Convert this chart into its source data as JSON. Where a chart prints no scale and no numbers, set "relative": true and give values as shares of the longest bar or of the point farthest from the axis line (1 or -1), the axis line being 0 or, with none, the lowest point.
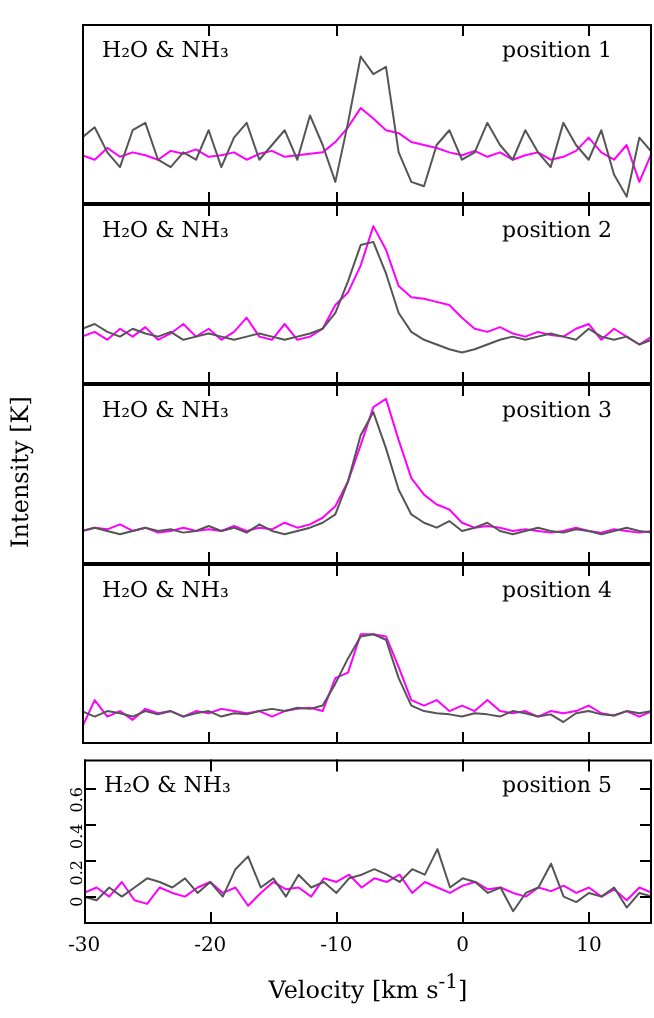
{
  "chart_data": [
    {
      "type": "line",
      "relative": true,
      "tick_labels": false,
      "xlim": [
        -30,
        15
      ],
      "xticks": [
        -30,
        -20,
        -10,
        0,
        10
      ],
      "annotations": [
        "H₂O & NH₃",
        "position 1"
      ],
      "x": [
        -30,
        -29,
        -28,
        -27,
        -26,
        -25,
        -24,
        -23,
        -22,
        -21,
        -20,
        -19,
        -18,
        -17,
        -16,
        -15,
        -14,
        -13,
        -12,
        -11,
        -10,
        -9,
        -8,
        -7,
        -6,
        -5,
        -4,
        -3,
        -2,
        -1,
        0,
        1,
        2,
        3,
        4,
        5,
        6,
        7,
        8,
        9,
        10,
        11,
        12,
        13,
        14,
        15
      ],
      "series": [
        {
          "color": "#555555",
          "values": [
            0.45,
            0.52,
            0.35,
            0.25,
            0.5,
            0.55,
            0.3,
            0.25,
            0.35,
            0.3,
            0.5,
            0.25,
            0.45,
            0.55,
            0.3,
            0.4,
            0.5,
            0.3,
            0.6,
            0.4,
            0.15,
            0.55,
            1.0,
            0.88,
            0.93,
            0.35,
            0.15,
            0.12,
            0.4,
            0.5,
            0.3,
            0.35,
            0.55,
            0.4,
            0.3,
            0.5,
            0.35,
            0.25,
            0.55,
            0.4,
            0.3,
            0.5,
            0.2,
            0.05,
            0.45,
            0.35
          ]
        },
        {
          "color": "#ff00ff",
          "values": [
            0.33,
            0.3,
            0.38,
            0.32,
            0.35,
            0.33,
            0.3,
            0.36,
            0.34,
            0.37,
            0.32,
            0.33,
            0.35,
            0.3,
            0.34,
            0.36,
            0.32,
            0.33,
            0.34,
            0.35,
            0.42,
            0.52,
            0.65,
            0.58,
            0.5,
            0.48,
            0.42,
            0.4,
            0.38,
            0.35,
            0.33,
            0.36,
            0.32,
            0.35,
            0.3,
            0.33,
            0.35,
            0.3,
            0.32,
            0.36,
            0.45,
            0.35,
            0.3,
            0.4,
            0.15,
            0.35
          ]
        }
      ]
    },
    {
      "type": "line",
      "relative": true,
      "tick_labels": false,
      "xlim": [
        -30,
        15
      ],
      "xticks": [
        -30,
        -20,
        -10,
        0,
        10
      ],
      "annotations": [
        "H₂O & NH₃",
        "position 2"
      ],
      "x": [
        -30,
        -29,
        -28,
        -27,
        -26,
        -25,
        -24,
        -23,
        -22,
        -21,
        -20,
        -19,
        -18,
        -17,
        -16,
        -15,
        -14,
        -13,
        -12,
        -11,
        -10,
        -9,
        -8,
        -7,
        -6,
        -5,
        -4,
        -3,
        -2,
        -1,
        0,
        1,
        2,
        3,
        4,
        5,
        6,
        7,
        8,
        9,
        10,
        11,
        12,
        13,
        14,
        15
      ],
      "series": [
        {
          "color": "#555555",
          "values": [
            0.35,
            0.38,
            0.33,
            0.3,
            0.35,
            0.32,
            0.3,
            0.33,
            0.28,
            0.3,
            0.32,
            0.3,
            0.28,
            0.3,
            0.32,
            0.3,
            0.28,
            0.3,
            0.32,
            0.35,
            0.45,
            0.65,
            0.88,
            0.9,
            0.7,
            0.45,
            0.33,
            0.28,
            0.25,
            0.22,
            0.2,
            0.22,
            0.25,
            0.28,
            0.3,
            0.28,
            0.3,
            0.32,
            0.3,
            0.28,
            0.35,
            0.3,
            0.28,
            0.3,
            0.25,
            0.28
          ]
        },
        {
          "color": "#ff00ff",
          "values": [
            0.3,
            0.33,
            0.28,
            0.35,
            0.3,
            0.36,
            0.28,
            0.32,
            0.38,
            0.3,
            0.35,
            0.28,
            0.33,
            0.42,
            0.3,
            0.28,
            0.38,
            0.28,
            0.3,
            0.35,
            0.5,
            0.58,
            0.75,
            1.0,
            0.85,
            0.62,
            0.55,
            0.54,
            0.52,
            0.5,
            0.42,
            0.35,
            0.33,
            0.36,
            0.32,
            0.3,
            0.33,
            0.31,
            0.3,
            0.35,
            0.38,
            0.28,
            0.35,
            0.3,
            0.25,
            0.3
          ]
        }
      ]
    },
    {
      "type": "line",
      "relative": true,
      "tick_labels": false,
      "xlim": [
        -30,
        15
      ],
      "xticks": [
        -30,
        -20,
        -10,
        0,
        10
      ],
      "ylabel": "Intensity [K]",
      "annotations": [
        "H₂O & NH₃",
        "position 3"
      ],
      "x": [
        -30,
        -29,
        -28,
        -27,
        -26,
        -25,
        -24,
        -23,
        -22,
        -21,
        -20,
        -19,
        -18,
        -17,
        -16,
        -15,
        -14,
        -13,
        -12,
        -11,
        -10,
        -9,
        -8,
        -7,
        -6,
        -5,
        -4,
        -3,
        -2,
        -1,
        0,
        1,
        2,
        3,
        4,
        5,
        6,
        7,
        8,
        9,
        10,
        11,
        12,
        13,
        14,
        15
      ],
      "series": [
        {
          "color": "#555555",
          "values": [
            0.2,
            0.22,
            0.2,
            0.18,
            0.2,
            0.22,
            0.2,
            0.21,
            0.19,
            0.2,
            0.23,
            0.2,
            0.22,
            0.19,
            0.24,
            0.2,
            0.18,
            0.2,
            0.22,
            0.25,
            0.3,
            0.5,
            0.78,
            0.92,
            0.7,
            0.45,
            0.3,
            0.25,
            0.22,
            0.26,
            0.2,
            0.22,
            0.25,
            0.2,
            0.18,
            0.2,
            0.22,
            0.2,
            0.19,
            0.21,
            0.2,
            0.18,
            0.2,
            0.22,
            0.2,
            0.19
          ]
        },
        {
          "color": "#ff00ff",
          "values": [
            0.2,
            0.22,
            0.21,
            0.24,
            0.2,
            0.22,
            0.19,
            0.2,
            0.22,
            0.2,
            0.21,
            0.2,
            0.23,
            0.2,
            0.22,
            0.21,
            0.25,
            0.22,
            0.24,
            0.28,
            0.35,
            0.5,
            0.72,
            0.95,
            1.0,
            0.75,
            0.52,
            0.42,
            0.36,
            0.33,
            0.25,
            0.22,
            0.23,
            0.22,
            0.2,
            0.21,
            0.2,
            0.19,
            0.2,
            0.22,
            0.2,
            0.19,
            0.21,
            0.2,
            0.19,
            0.2
          ]
        }
      ]
    },
    {
      "type": "line",
      "relative": true,
      "tick_labels": false,
      "xlim": [
        -30,
        15
      ],
      "xticks": [
        -30,
        -20,
        -10,
        0,
        10
      ],
      "annotations": [
        "H₂O & NH₃",
        "position 4"
      ],
      "x": [
        -30,
        -29,
        -28,
        -27,
        -26,
        -25,
        -24,
        -23,
        -22,
        -21,
        -20,
        -19,
        -18,
        -17,
        -16,
        -15,
        -14,
        -13,
        -12,
        -11,
        -10,
        -9,
        -8,
        -7,
        -6,
        -5,
        -4,
        -3,
        -2,
        -1,
        0,
        1,
        2,
        3,
        4,
        5,
        6,
        7,
        8,
        9,
        10,
        11,
        12,
        13,
        14,
        15
      ],
      "series": [
        {
          "color": "#555555",
          "values": [
            0.3,
            0.25,
            0.3,
            0.28,
            0.25,
            0.3,
            0.27,
            0.3,
            0.25,
            0.28,
            0.3,
            0.25,
            0.28,
            0.27,
            0.3,
            0.32,
            0.3,
            0.33,
            0.32,
            0.35,
            0.55,
            0.78,
            0.98,
            1.0,
            0.95,
            0.6,
            0.35,
            0.3,
            0.28,
            0.27,
            0.25,
            0.28,
            0.27,
            0.25,
            0.3,
            0.28,
            0.25,
            0.27,
            0.2,
            0.28,
            0.3,
            0.27,
            0.26,
            0.3,
            0.28,
            0.3
          ]
        },
        {
          "color": "#ff00ff",
          "values": [
            0.15,
            0.4,
            0.25,
            0.3,
            0.22,
            0.32,
            0.28,
            0.3,
            0.25,
            0.3,
            0.28,
            0.32,
            0.3,
            0.28,
            0.3,
            0.25,
            0.3,
            0.32,
            0.33,
            0.3,
            0.6,
            0.65,
            1.0,
            1.0,
            0.98,
            0.7,
            0.4,
            0.35,
            0.4,
            0.3,
            0.35,
            0.3,
            0.4,
            0.3,
            0.28,
            0.3,
            0.25,
            0.3,
            0.28,
            0.3,
            0.35,
            0.28,
            0.26,
            0.3,
            0.25,
            0.3
          ]
        }
      ]
    },
    {
      "type": "line",
      "xlim": [
        -30,
        15
      ],
      "xticks": [
        -30,
        -20,
        -10,
        0,
        10
      ],
      "ylim": [
        -0.15,
        0.75
      ],
      "yticks": [
        0,
        0.2,
        0.4,
        0.6
      ],
      "xlabel": "Velocity [km s$^{-1}$]",
      "annotations": [
        "H₂O & NH₃",
        "position 5"
      ],
      "x": [
        -30,
        -29,
        -28,
        -27,
        -26,
        -25,
        -24,
        -23,
        -22,
        -21,
        -20,
        -19,
        -18,
        -17,
        -16,
        -15,
        -14,
        -13,
        -12,
        -11,
        -10,
        -9,
        -8,
        -7,
        -6,
        -5,
        -4,
        -3,
        -2,
        -1,
        0,
        1,
        2,
        3,
        4,
        5,
        6,
        7,
        8,
        9,
        10,
        11,
        12,
        13,
        14,
        15
      ],
      "series": [
        {
          "color": "#555555",
          "values": [
            0.0,
            -0.02,
            0.05,
            0.0,
            0.05,
            0.1,
            0.08,
            0.05,
            0.1,
            0.02,
            0.08,
            0.0,
            0.15,
            0.22,
            0.05,
            0.1,
            0.0,
            0.12,
            0.05,
            0.08,
            0.02,
            0.1,
            0.12,
            0.15,
            0.12,
            0.08,
            0.15,
            0.12,
            0.26,
            0.05,
            0.1,
            0.08,
            0.02,
            0.05,
            -0.08,
            0.02,
            0.05,
            0.18,
            0.0,
            -0.03,
            0.02,
            0.0,
            0.05,
            -0.06,
            0.02,
            0.0
          ]
        },
        {
          "color": "#ff00ff",
          "values": [
            0.02,
            0.05,
            0.0,
            0.08,
            -0.02,
            -0.04,
            0.05,
            0.02,
            0.0,
            0.05,
            0.08,
            0.02,
            0.05,
            -0.05,
            0.02,
            0.08,
            0.04,
            0.05,
            0.0,
            0.1,
            0.08,
            0.12,
            0.05,
            0.1,
            0.08,
            0.12,
            0.02,
            0.08,
            0.05,
            0.02,
            0.06,
            0.08,
            0.04,
            0.05,
            0.02,
            0.0,
            0.05,
            0.03,
            0.06,
            0.02,
            0.05,
            0.0,
            0.04,
            -0.02,
            0.05,
            0.02
          ]
        }
      ]
    }
  ]
}
